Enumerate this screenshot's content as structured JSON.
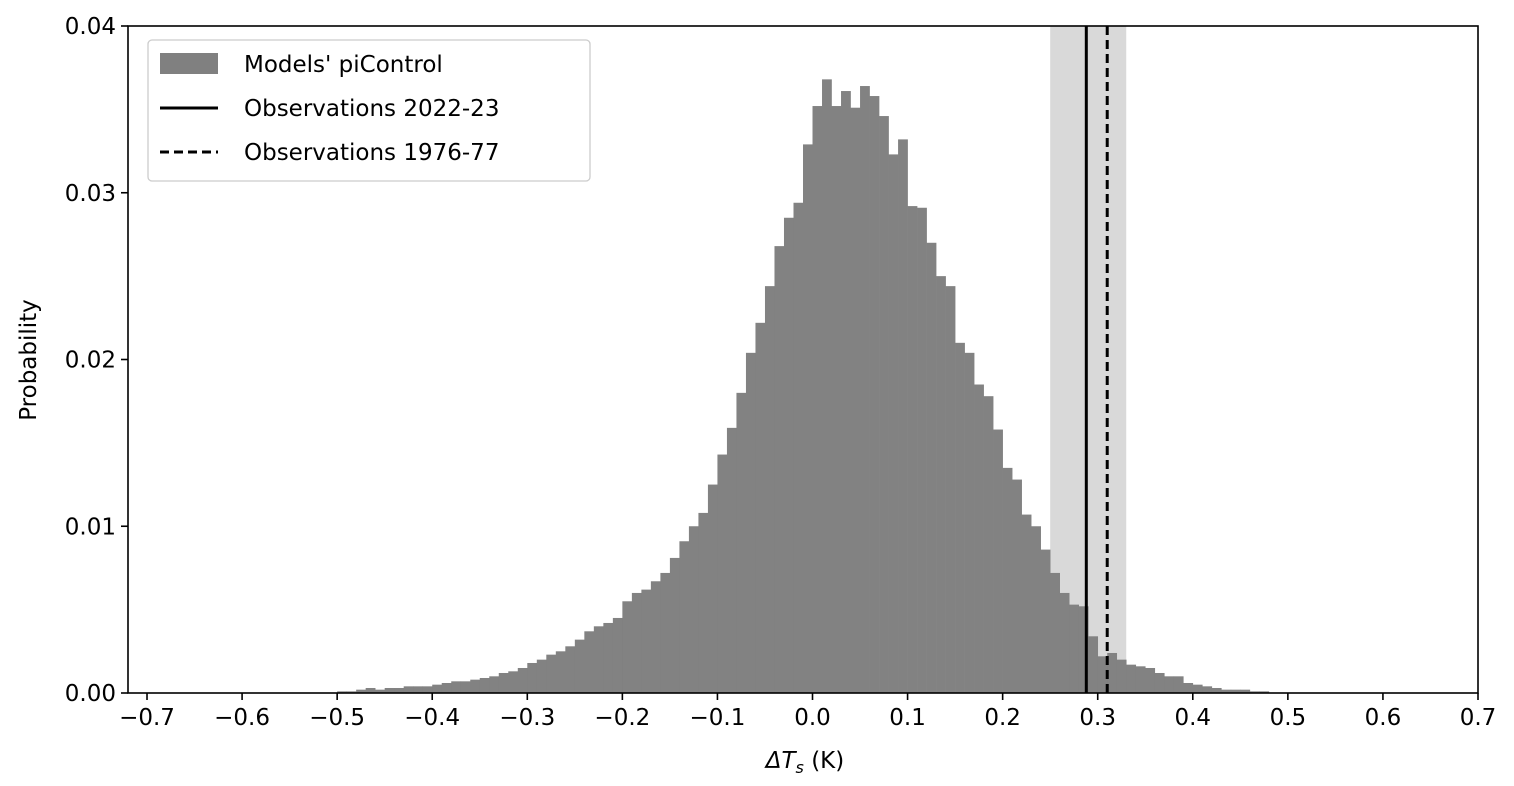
{
  "chart_data": {
    "type": "bar",
    "xlabel_main": "ΔT",
    "xlabel_sub": "s",
    "xlabel_unit": " (K)",
    "ylabel": "Probability",
    "xlim": [
      -0.72,
      0.7
    ],
    "ylim": [
      0,
      0.04
    ],
    "x_ticks": [
      -0.7,
      -0.6,
      -0.5,
      -0.4,
      -0.3,
      -0.2,
      -0.1,
      0.0,
      0.1,
      0.2,
      0.3,
      0.4,
      0.5,
      0.6,
      0.7
    ],
    "x_tick_labels": [
      "−0.7",
      "−0.6",
      "−0.5",
      "−0.4",
      "−0.3",
      "−0.2",
      "−0.1",
      "0.0",
      "0.1",
      "0.2",
      "0.3",
      "0.4",
      "0.5",
      "0.6",
      "0.7"
    ],
    "y_ticks": [
      0,
      0.01,
      0.02,
      0.03,
      0.04
    ],
    "y_tick_labels": [
      "0.00",
      "0.01",
      "0.02",
      "0.03",
      "0.04"
    ],
    "grid": false,
    "legend_position": "top-left",
    "histogram": {
      "name": "Models' piControl",
      "color": "#808080",
      "bin_width": 0.01,
      "bin_start": -0.5,
      "values": [
        0.0001,
        0.0001,
        0.0002,
        0.0003,
        0.0002,
        0.0003,
        0.0003,
        0.0004,
        0.0004,
        0.0004,
        0.0005,
        0.0006,
        0.0007,
        0.0007,
        0.0008,
        0.0009,
        0.001,
        0.0012,
        0.0013,
        0.0015,
        0.0018,
        0.002,
        0.0023,
        0.0025,
        0.0028,
        0.0032,
        0.0037,
        0.004,
        0.0042,
        0.0045,
        0.0055,
        0.006,
        0.0062,
        0.0067,
        0.0072,
        0.0081,
        0.0091,
        0.01,
        0.0108,
        0.0125,
        0.0143,
        0.0159,
        0.018,
        0.0204,
        0.0222,
        0.0244,
        0.0268,
        0.0285,
        0.0294,
        0.0329,
        0.0352,
        0.0368,
        0.0352,
        0.0361,
        0.0351,
        0.0364,
        0.0358,
        0.0346,
        0.0323,
        0.0332,
        0.0292,
        0.0291,
        0.027,
        0.025,
        0.0244,
        0.021,
        0.0204,
        0.0185,
        0.0178,
        0.0158,
        0.0135,
        0.0128,
        0.0107,
        0.01,
        0.0086,
        0.0072,
        0.006,
        0.0053,
        0.0052,
        0.0034,
        0.0022,
        0.0024,
        0.002,
        0.0017,
        0.0016,
        0.0015,
        0.0012,
        0.001,
        0.001,
        0.0006,
        0.0005,
        0.0004,
        0.0003,
        0.0002,
        0.0002,
        0.0002,
        0.0001,
        0.0001
      ]
    },
    "shaded_band": {
      "from": 0.25,
      "to": 0.33,
      "color": "#d9d9d9"
    },
    "lines": [
      {
        "name": "Observations 2022-23",
        "x": 0.288,
        "style": "solid",
        "color": "#000000"
      },
      {
        "name": "Observations 1976-77",
        "x": 0.31,
        "style": "dashed",
        "color": "#000000"
      }
    ]
  }
}
